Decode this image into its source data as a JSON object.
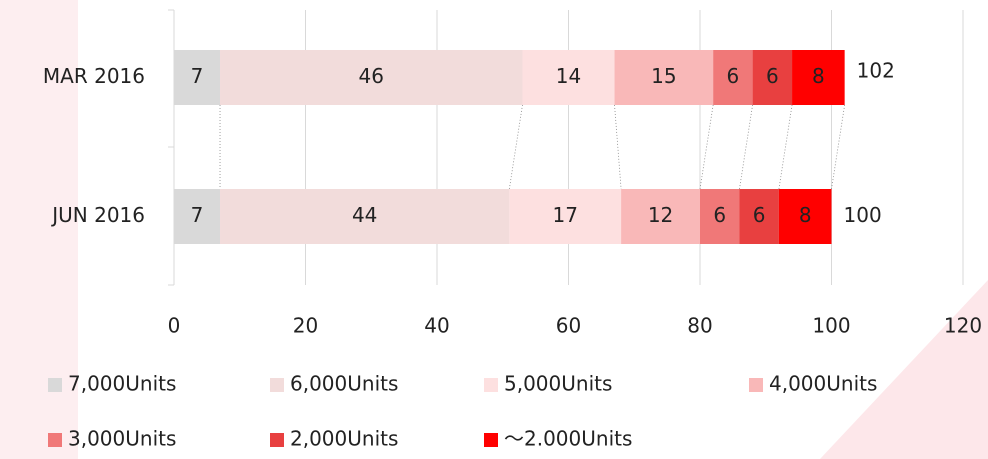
{
  "chart_data": {
    "type": "stacked_barh",
    "categories": [
      "MAR 2016",
      "JUN 2016"
    ],
    "series": [
      {
        "name": "7,000Units",
        "color": "#d9d9d9",
        "values": [
          7,
          7
        ]
      },
      {
        "name": "6,000Units",
        "color": "#f2dcdb",
        "values": [
          46,
          44
        ]
      },
      {
        "name": "5,000Units",
        "color": "#fde0e0",
        "values": [
          14,
          17
        ]
      },
      {
        "name": "4,000Units",
        "color": "#f9b8b8",
        "values": [
          15,
          12
        ]
      },
      {
        "name": "3,000Units",
        "color": "#f07878",
        "values": [
          6,
          6
        ]
      },
      {
        "name": "2,000Units",
        "color": "#e84040",
        "values": [
          6,
          6
        ]
      },
      {
        "name": "～2.000Units",
        "color": "#ff0000",
        "values": [
          8,
          8
        ]
      }
    ],
    "totals": [
      102,
      100
    ],
    "xlim": [
      0,
      120
    ],
    "xticks": [
      0,
      20,
      40,
      60,
      80,
      100,
      120
    ],
    "grid": true,
    "legend": "bottom"
  }
}
